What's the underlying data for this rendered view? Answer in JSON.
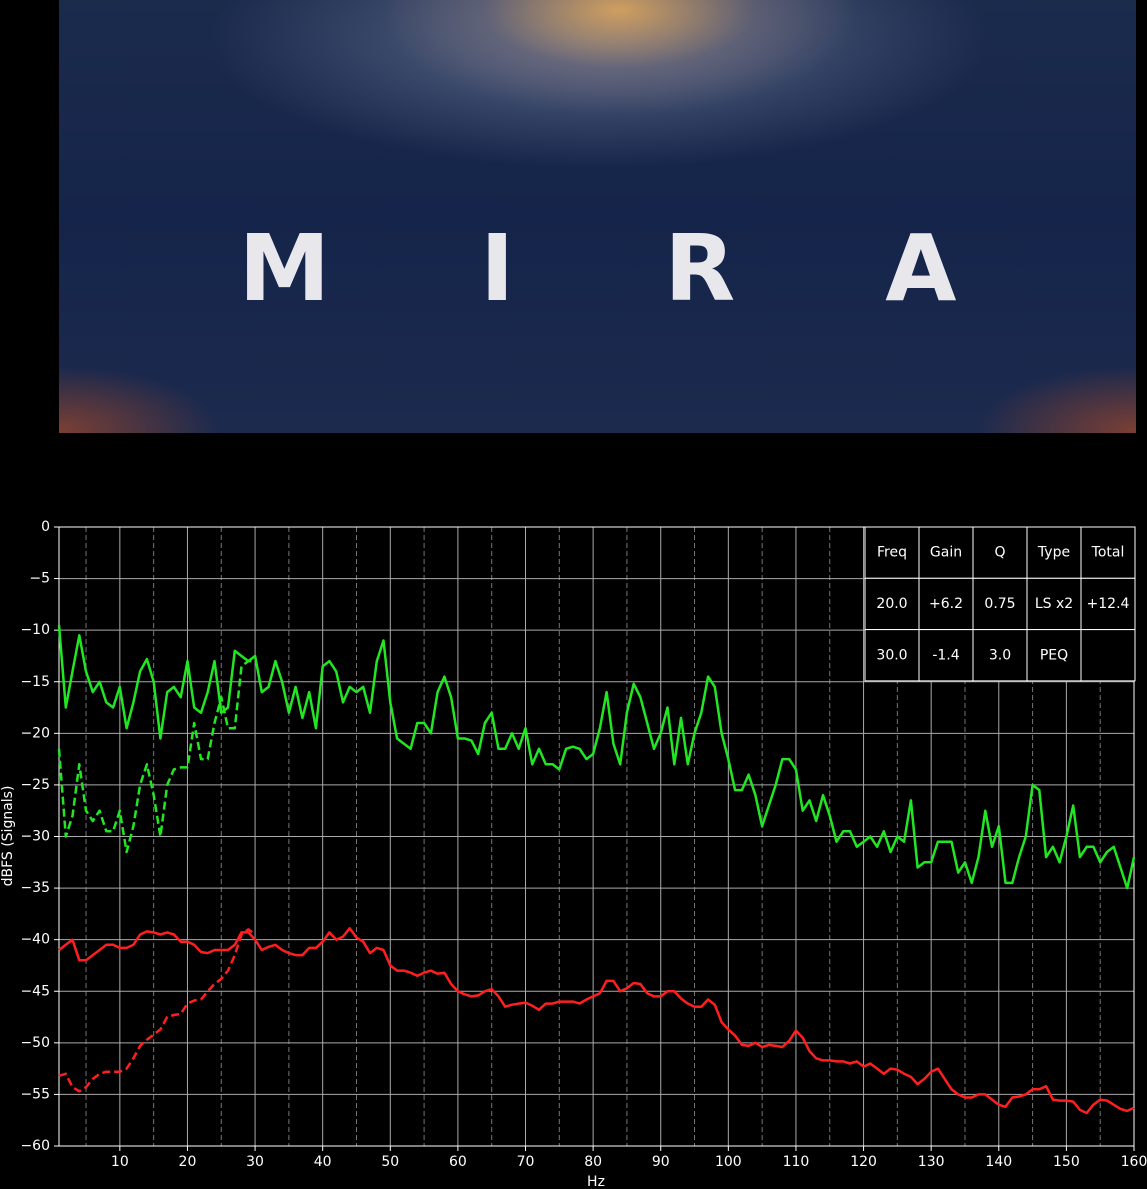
{
  "poster_title": "MIRA",
  "chart_data": {
    "type": "line",
    "x_label": "Hz",
    "y_label": "dBFS (Signals)",
    "xlim": [
      1,
      160
    ],
    "ylim": [
      -60,
      0
    ],
    "xticks": [
      10,
      20,
      30,
      40,
      50,
      60,
      70,
      80,
      90,
      100,
      110,
      120,
      130,
      140,
      150,
      160
    ],
    "xminorticks": [
      5,
      15,
      25,
      35,
      45,
      55,
      65,
      75,
      85,
      95,
      105,
      115,
      125,
      135,
      145,
      155
    ],
    "yticks": [
      {
        "value": -60,
        "label": "−60"
      },
      {
        "value": -55,
        "label": "−55"
      },
      {
        "value": -50,
        "label": "−50"
      },
      {
        "value": -45,
        "label": "−45"
      },
      {
        "value": -40,
        "label": "−40"
      },
      {
        "value": -35,
        "label": "−35"
      },
      {
        "value": -30,
        "label": "−30"
      },
      {
        "value": -25,
        "label": "−25"
      },
      {
        "value": -20,
        "label": "−20"
      },
      {
        "value": -15,
        "label": "−15"
      },
      {
        "value": -10,
        "label": "−10"
      },
      {
        "value": -5,
        "label": "−5"
      },
      0
    ],
    "grid": true,
    "x": [
      1,
      2,
      3,
      4,
      5,
      6,
      7,
      8,
      9,
      10,
      11,
      12,
      13,
      14,
      15,
      16,
      17,
      18,
      19,
      20,
      21,
      22,
      23,
      24,
      25,
      26,
      27,
      28,
      29,
      30,
      31,
      32,
      33,
      34,
      35,
      36,
      37,
      38,
      39,
      40,
      41,
      42,
      43,
      44,
      45,
      46,
      47,
      48,
      49,
      50,
      51,
      52,
      53,
      54,
      55,
      56,
      57,
      58,
      59,
      60,
      61,
      62,
      63,
      64,
      65,
      66,
      67,
      68,
      69,
      70,
      71,
      72,
      73,
      74,
      75,
      76,
      77,
      78,
      79,
      80,
      81,
      82,
      83,
      84,
      85,
      86,
      87,
      88,
      89,
      90,
      91,
      92,
      93,
      94,
      95,
      96,
      97,
      98,
      99,
      100,
      101,
      102,
      103,
      104,
      105,
      106,
      107,
      108,
      109,
      110,
      111,
      112,
      113,
      114,
      115,
      116,
      117,
      118,
      119,
      120,
      121,
      122,
      123,
      124,
      125,
      126,
      127,
      128,
      129,
      130,
      131,
      132,
      133,
      134,
      135,
      136,
      137,
      138,
      139,
      140,
      141,
      142,
      143,
      144,
      145,
      146,
      147,
      148,
      149,
      150,
      151,
      152,
      153,
      154,
      155,
      156,
      157,
      158,
      159,
      160
    ],
    "series": [
      {
        "color": "#22e622",
        "dash": false,
        "values": [
          -9.5,
          -17.5,
          -14,
          -10.5,
          -14,
          -16,
          -15,
          -17,
          -17.5,
          -15.5,
          -19.5,
          -17,
          -14,
          -12.8,
          -15,
          -20.5,
          -16,
          -15.5,
          -16.5,
          -13,
          -17.5,
          -18,
          -16,
          -13,
          -18,
          -17.5,
          -12,
          -12.5,
          -13,
          -12.5,
          -16,
          -15.5,
          -13,
          -15,
          -18,
          -15.5,
          -18.5,
          -16,
          -19.5,
          -13.5,
          -13,
          -14,
          -17,
          -15.5,
          -16,
          -15.5,
          -18,
          -13,
          -11,
          -17,
          -20.5,
          -21,
          -21.5,
          -19,
          -19,
          -20,
          -16,
          -14.5,
          -16.5,
          -20.5,
          -20.5,
          -20.7,
          -22,
          -19,
          -18,
          -21.5,
          -21.5,
          -20,
          -21.5,
          -19.5,
          -23,
          -21.5,
          -23,
          -23,
          -23.5,
          -21.5,
          -21.3,
          -21.5,
          -22.5,
          -22,
          -19.5,
          -16,
          -21,
          -23,
          -18,
          -15.2,
          -16.5,
          -19,
          -21.5,
          -20,
          -17.5,
          -23,
          -18.5,
          -23,
          -20,
          -18,
          -14.5,
          -15.5,
          -20,
          -22.5,
          -25.5,
          -25.5,
          -24,
          -26,
          -29,
          -27,
          -25,
          -22.5,
          -22.5,
          -23.5,
          -27.5,
          -26.5,
          -28.5,
          -26,
          -28,
          -30.5,
          -29.5,
          -29.5,
          -31,
          -30.5,
          -30,
          -31,
          -29.5,
          -31.5,
          -30,
          -30.5,
          -26.5,
          -33,
          -32.5,
          -32.5,
          -30.5,
          -30.5,
          -30.5,
          -33.5,
          -32.5,
          -34.5,
          -32,
          -27.5,
          -31,
          -29,
          -34.5,
          -34.5,
          -32,
          -30,
          -25,
          -25.5,
          -32,
          -31,
          -32.5,
          -30,
          -27,
          -32,
          -31,
          -31,
          -32.5,
          -31.5,
          -31,
          -33,
          -35,
          -32
        ]
      },
      {
        "color": "#22e622",
        "dash": true,
        "x": [
          1,
          2,
          3,
          4,
          5,
          6,
          7,
          8,
          9,
          10,
          11,
          12,
          13,
          14,
          15,
          16,
          17,
          18,
          19,
          20,
          21,
          22,
          23,
          24,
          25,
          26,
          27,
          28,
          29,
          30
        ],
        "values": [
          -21.5,
          -30,
          -28,
          -23,
          -27.5,
          -28.5,
          -27.5,
          -29.5,
          -29.5,
          -27.5,
          -31.5,
          -29,
          -25,
          -23,
          -26,
          -30,
          -25,
          -23.5,
          -23.3,
          -23.3,
          -19,
          -22.5,
          -22.5,
          -19,
          -16.5,
          -19.5,
          -19.5,
          -13.5,
          -13,
          -13
        ]
      },
      {
        "color": "#ff1f1f",
        "dash": false,
        "values": [
          -41,
          -40.5,
          -40,
          -42,
          -42,
          -41.5,
          -41,
          -40.5,
          -40.5,
          -40.8,
          -40.8,
          -40.5,
          -39.5,
          -39.2,
          -39.3,
          -39.5,
          -39.3,
          -39.5,
          -40.2,
          -40.2,
          -40.5,
          -41.2,
          -41.3,
          -41,
          -41,
          -41,
          -40.5,
          -39.3,
          -39.3,
          -40,
          -41,
          -40.7,
          -40.5,
          -41,
          -41.3,
          -41.5,
          -41.5,
          -40.8,
          -40.8,
          -40.2,
          -39.3,
          -40,
          -39.7,
          -38.9,
          -39.8,
          -40.2,
          -41.3,
          -40.8,
          -41,
          -42.5,
          -43,
          -43,
          -43.2,
          -43.5,
          -43.2,
          -43,
          -43.3,
          -43.2,
          -44.3,
          -45,
          -45.3,
          -45.5,
          -45.4,
          -45,
          -44.8,
          -45.5,
          -46.5,
          -46.3,
          -46.2,
          -46.1,
          -46.4,
          -46.8,
          -46.2,
          -46.2,
          -46,
          -46,
          -46,
          -46.2,
          -45.8,
          -45.5,
          -45.2,
          -44,
          -44,
          -45,
          -44.7,
          -44.2,
          -44.3,
          -45.2,
          -45.5,
          -45.5,
          -45,
          -45,
          -45.7,
          -46.2,
          -46.5,
          -46.5,
          -45.8,
          -46.3,
          -48,
          -48.7,
          -49.3,
          -50.2,
          -50.3,
          -50,
          -50.4,
          -50.2,
          -50.3,
          -50.4,
          -49.8,
          -48.8,
          -49.5,
          -50.8,
          -51.5,
          -51.7,
          -51.7,
          -51.8,
          -51.8,
          -52,
          -51.8,
          -52.3,
          -52,
          -52.5,
          -53,
          -52.5,
          -52.6,
          -53,
          -53.3,
          -54,
          -53.5,
          -52.8,
          -52.5,
          -53.5,
          -54.5,
          -55,
          -55.3,
          -55.3,
          -55,
          -55,
          -55.5,
          -56,
          -56.2,
          -55.3,
          -55.2,
          -55,
          -54.5,
          -54.5,
          -54.2,
          -55.5,
          -55.6,
          -55.6,
          -55.7,
          -56.5,
          -56.8,
          -56,
          -55.5,
          -55.6,
          -56,
          -56.4,
          -56.6,
          -56.3
        ]
      },
      {
        "color": "#ff1f1f",
        "dash": true,
        "x": [
          1,
          2,
          3,
          4,
          5,
          6,
          7,
          8,
          9,
          10,
          11,
          12,
          13,
          14,
          15,
          16,
          17,
          18,
          19,
          20,
          21,
          22,
          23,
          24,
          25,
          26,
          27,
          28,
          29,
          30
        ],
        "values": [
          -53.2,
          -53,
          -54.3,
          -54.7,
          -54.3,
          -53.5,
          -53,
          -52.8,
          -52.8,
          -52.8,
          -52.5,
          -51.5,
          -50.3,
          -49.7,
          -49.2,
          -48.7,
          -47.5,
          -47.3,
          -47.2,
          -46.2,
          -45.9,
          -45.8,
          -45,
          -44.3,
          -43.8,
          -43,
          -41.5,
          -39.5,
          -39,
          -39.5
        ]
      }
    ],
    "table": {
      "header": [
        "Freq",
        "Gain",
        "Q",
        "Type",
        "Total"
      ],
      "rows": [
        [
          "20.0",
          "+6.2",
          "0.75",
          "LS x2",
          "+12.4"
        ],
        [
          "30.0",
          "-1.4",
          "3.0",
          "PEQ"
        ]
      ]
    }
  }
}
